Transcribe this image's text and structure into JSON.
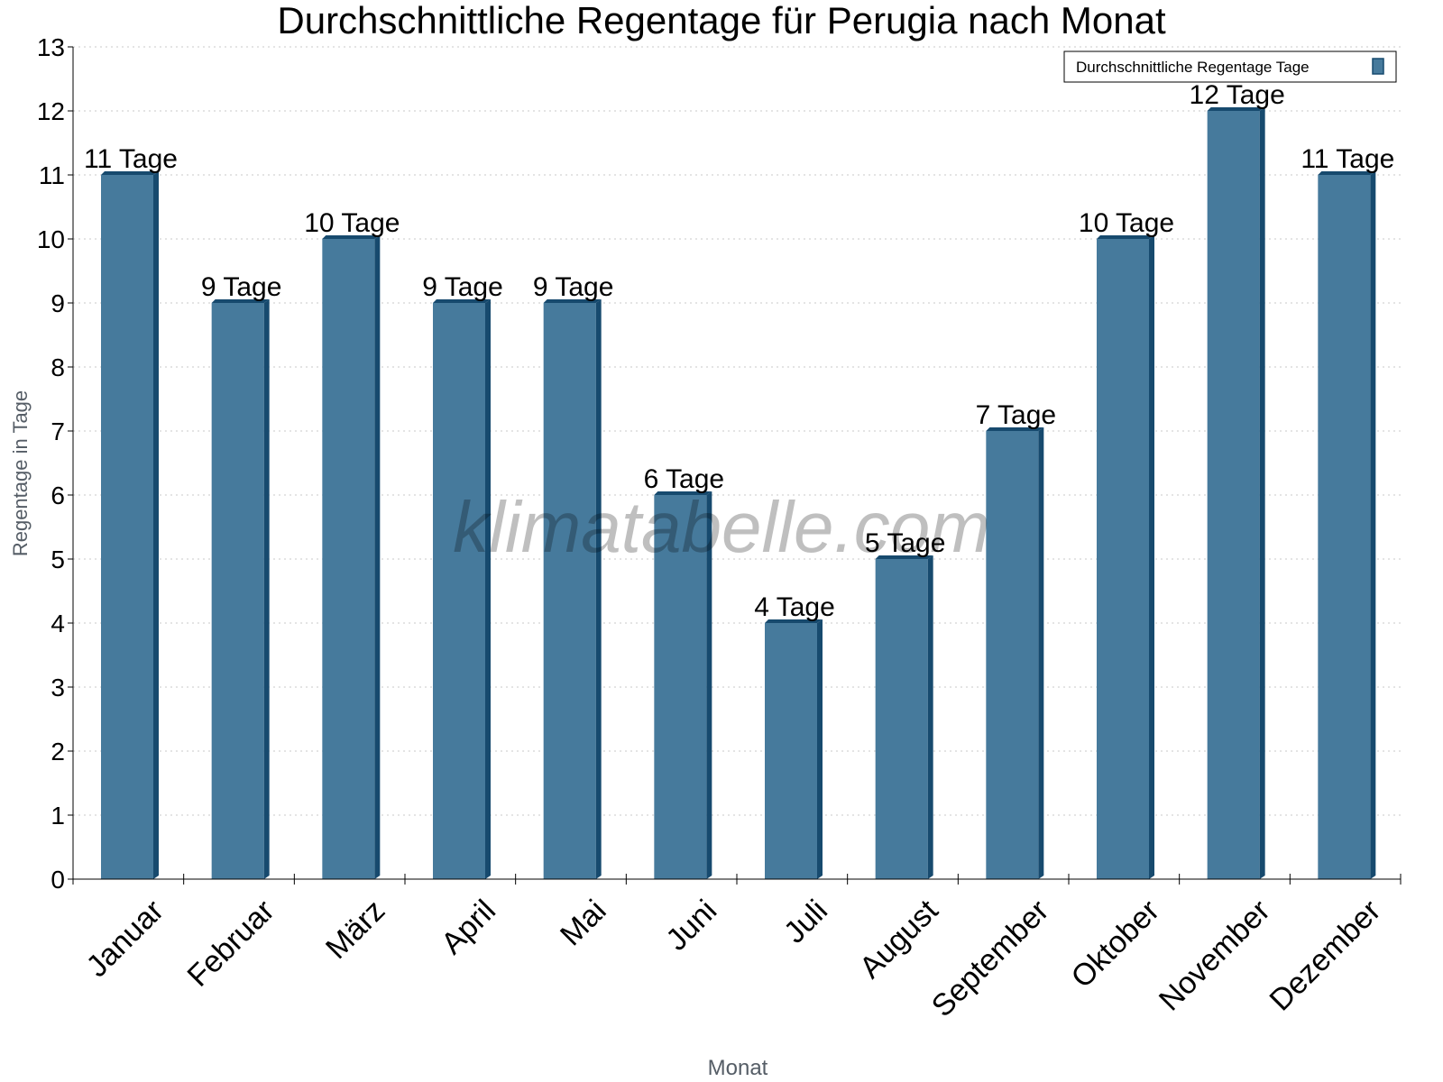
{
  "chart_data": {
    "type": "bar",
    "title": "Durchschnittliche Regentage für Perugia nach Monat",
    "xlabel": "Monat",
    "ylabel": "Regentage in Tage",
    "categories": [
      "Januar",
      "Februar",
      "März",
      "April",
      "Mai",
      "Juni",
      "Juli",
      "August",
      "September",
      "Oktober",
      "November",
      "Dezember"
    ],
    "series": [
      {
        "name": "Durchschnittliche Regentage Tage",
        "values": [
          11,
          9,
          10,
          9,
          9,
          6,
          4,
          5,
          7,
          10,
          12,
          11
        ]
      }
    ],
    "data_labels": [
      "11 Tage",
      "9 Tage",
      "10 Tage",
      "9 Tage",
      "9 Tage",
      "6 Tage",
      "4 Tage",
      "5 Tage",
      "7 Tage",
      "10 Tage",
      "12 Tage",
      "11 Tage"
    ],
    "ylim": [
      0,
      13
    ],
    "yticks": [
      0,
      1,
      2,
      3,
      4,
      5,
      6,
      7,
      8,
      9,
      10,
      11,
      12,
      13
    ],
    "grid": true,
    "legend_position": "top-right",
    "watermark": "klimatabelle.com",
    "colors": {
      "bar_front": "#467a9c",
      "bar_side": "#174a6e",
      "grid": "#c8c8c8",
      "axis_label": "#555d66"
    }
  }
}
